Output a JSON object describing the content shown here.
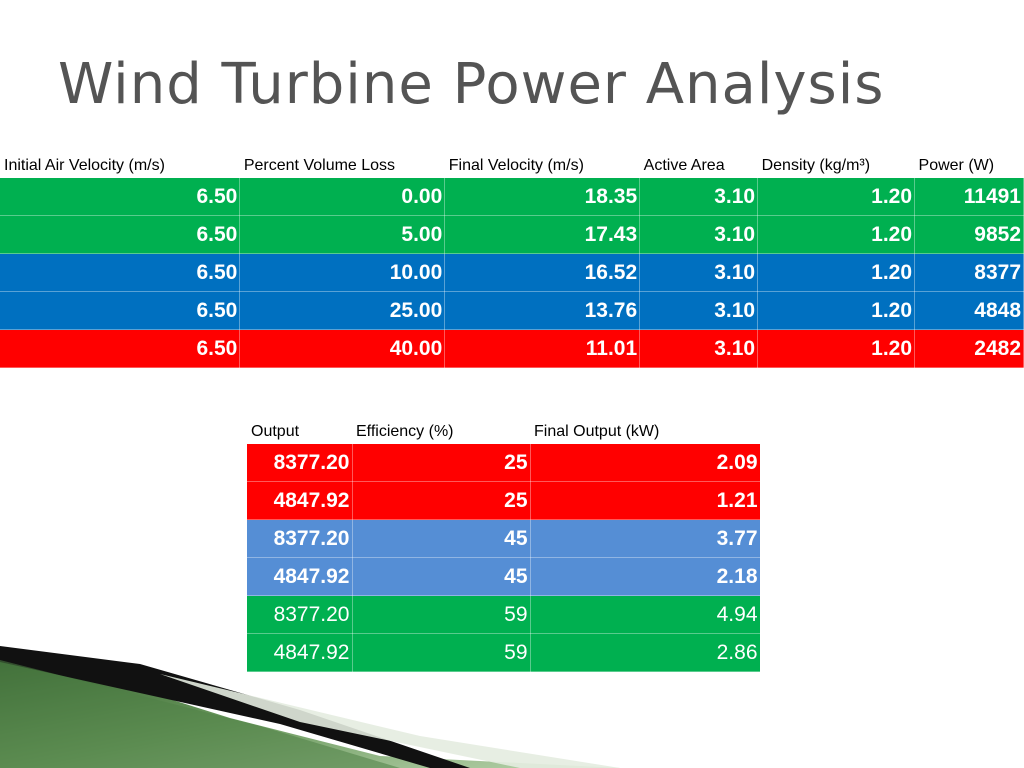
{
  "title": "Wind Turbine Power Analysis",
  "table1": {
    "headers": [
      "Initial Air Velocity (m/s)",
      "Percent Volume Loss",
      "Final Velocity (m/s)",
      "Active Area",
      "Density (kg/m³)",
      "Power (W)"
    ],
    "rows": [
      {
        "color": "green",
        "cells": [
          "6.50",
          "0.00",
          "18.35",
          "3.10",
          "1.20",
          "11491"
        ]
      },
      {
        "color": "green",
        "cells": [
          "6.50",
          "5.00",
          "17.43",
          "3.10",
          "1.20",
          "9852"
        ]
      },
      {
        "color": "blue",
        "cells": [
          "6.50",
          "10.00",
          "16.52",
          "3.10",
          "1.20",
          "8377"
        ]
      },
      {
        "color": "blue",
        "cells": [
          "6.50",
          "25.00",
          "13.76",
          "3.10",
          "1.20",
          "4848"
        ]
      },
      {
        "color": "red",
        "cells": [
          "6.50",
          "40.00",
          "11.01",
          "3.10",
          "1.20",
          "2482"
        ]
      }
    ]
  },
  "table2": {
    "headers": [
      "Output",
      "Efficiency (%)",
      "Final Output (kW)"
    ],
    "rows": [
      {
        "color": "red",
        "bold": true,
        "cells": [
          "8377.20",
          "25",
          "2.09"
        ]
      },
      {
        "color": "red",
        "bold": true,
        "cells": [
          "4847.92",
          "25",
          "1.21"
        ]
      },
      {
        "color": "lightblue",
        "bold": true,
        "cells": [
          "8377.20",
          "45",
          "3.77"
        ]
      },
      {
        "color": "lightblue",
        "bold": true,
        "cells": [
          "4847.92",
          "45",
          "2.18"
        ]
      },
      {
        "color": "green",
        "bold": false,
        "cells": [
          "8377.20",
          "59",
          "4.94"
        ]
      },
      {
        "color": "green",
        "bold": false,
        "cells": [
          "4847.92",
          "59",
          "2.86"
        ]
      }
    ]
  },
  "colors": {
    "green": "#00b050",
    "blue": "#0070c0",
    "red": "#ff0000",
    "lightblue": "#558ed5"
  }
}
